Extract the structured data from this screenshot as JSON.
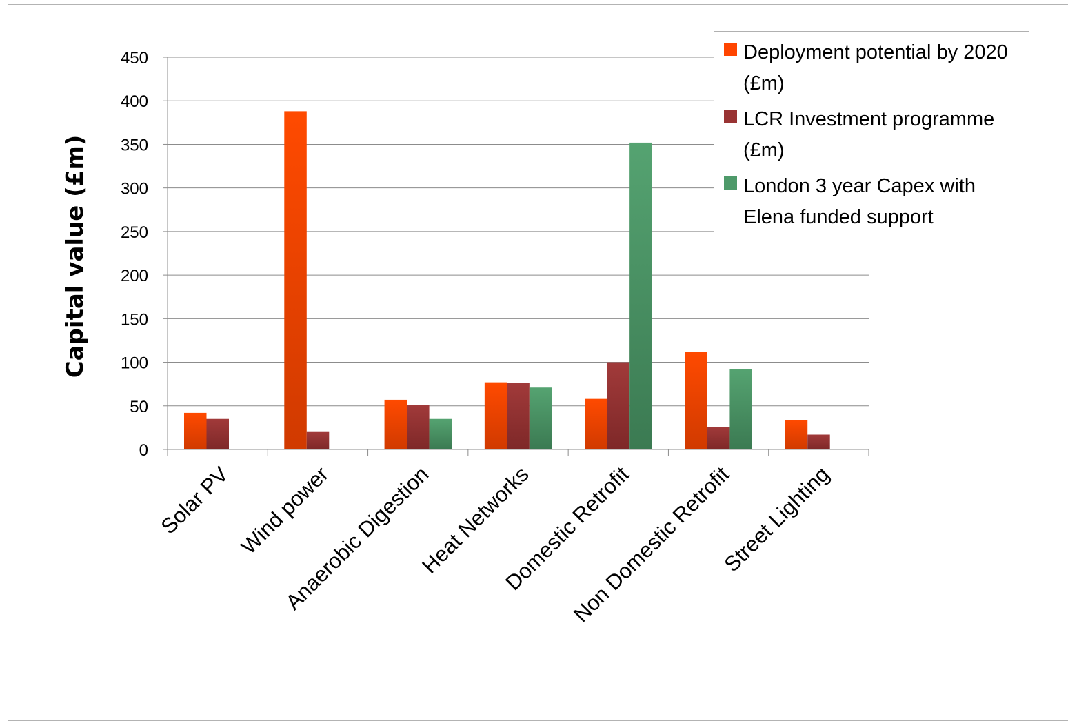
{
  "chart_data": {
    "type": "bar",
    "title": "",
    "xlabel": "",
    "ylabel": "Capital value (£m)",
    "ylim": [
      0,
      450
    ],
    "yticks": [
      0,
      50,
      100,
      150,
      200,
      250,
      300,
      350,
      400,
      450
    ],
    "grid": true,
    "legend_position": "top-right",
    "categories": [
      "Solar PV",
      "Wind power",
      "Anaerobic Digestion",
      "Heat Networks",
      "Domestic Retrofit",
      "Non Domestic Retrofit",
      "Street Lighting"
    ],
    "series": [
      {
        "name": "Deployment potential by 2020 (£m)",
        "color": "#ff4500",
        "values": [
          42,
          388,
          57,
          77,
          58,
          112,
          34
        ]
      },
      {
        "name": "LCR Investment programme (£m)",
        "color": "#993333",
        "values": [
          35,
          20,
          51,
          76,
          100,
          26,
          17
        ]
      },
      {
        "name": "London 3 year Capex with Elena funded support",
        "color": "#4e9a6a",
        "values": [
          null,
          null,
          35,
          71,
          352,
          92,
          null
        ]
      }
    ]
  }
}
